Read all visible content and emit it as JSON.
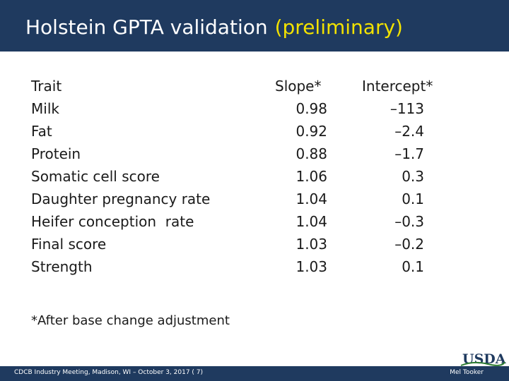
{
  "slide": {
    "title": "Holstein GPTA validation",
    "title_accent": "(preliminary)",
    "colors": {
      "bar": "#1f3a5f",
      "accent": "#f2e200"
    }
  },
  "table": {
    "headers": {
      "trait": "Trait",
      "slope": "Slope*",
      "intercept": "Intercept*"
    },
    "rows": [
      {
        "trait": "Milk",
        "slope": "0.98",
        "intercept": "–113"
      },
      {
        "trait": "Fat",
        "slope": "0.92",
        "intercept": "–2.4"
      },
      {
        "trait": "Protein",
        "slope": "0.88",
        "intercept": "–1.7"
      },
      {
        "trait": "Somatic cell score",
        "slope": "1.06",
        "intercept": "0.3"
      },
      {
        "trait": "Daughter pregnancy rate",
        "slope": "1.04",
        "intercept": "0.1"
      },
      {
        "trait": "Heifer conception  rate",
        "slope": "1.04",
        "intercept": "–0.3"
      },
      {
        "trait": "Final score",
        "slope": "1.03",
        "intercept": "–0.2"
      },
      {
        "trait": "Strength",
        "slope": "1.03",
        "intercept": "0.1"
      }
    ]
  },
  "footnote": "*After base change adjustment",
  "footer": {
    "left": "CDCB Industry Meeting, Madison, WI – October 3, 2017 ( 7)",
    "right": "Mel Tooker",
    "logo": "USDA"
  }
}
